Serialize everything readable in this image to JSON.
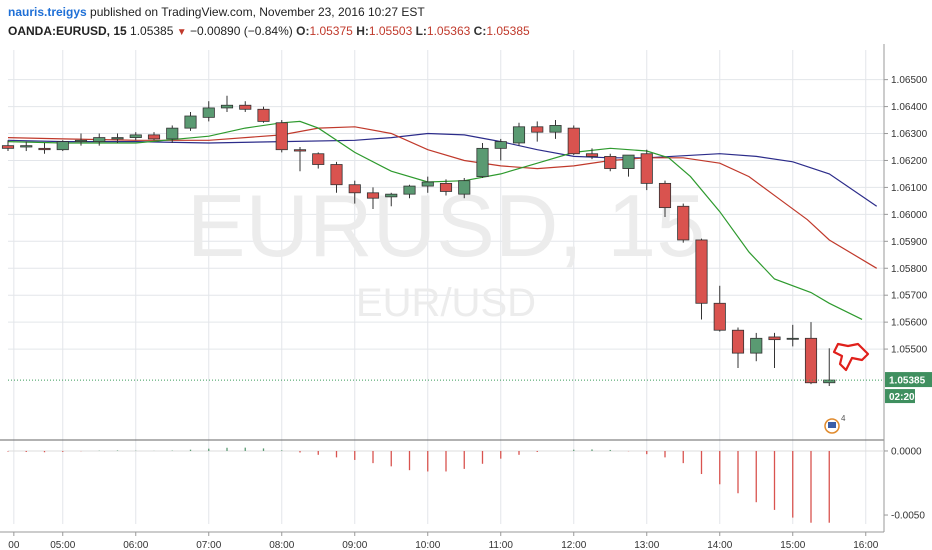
{
  "header": {
    "author": "nauris.treigys",
    "published": "published on TradingView.com, November 23, 2016 10:27 EST",
    "symbol": "OANDA:EURUSD, 15",
    "last": "1.05385",
    "change": "−0.00890 (−0.84%)",
    "o_label": "O:",
    "o": "1.05375",
    "h_label": "H:",
    "h": "1.05503",
    "l_label": "L:",
    "l": "1.05363",
    "c_label": "C:",
    "c": "1.05385"
  },
  "watermark": {
    "line1": "EURUSD, 15",
    "line2": "EUR/USD"
  },
  "price_badge": "1.05385",
  "countdown_badge": "02:20",
  "event_badge": "4",
  "colors": {
    "up": "#5a9a72",
    "down": "#d9534f",
    "ma_fast": "#2e9a2e",
    "ma_mid": "#c0392b",
    "ma_slow": "#2c2c8a",
    "grid": "#e3e6ea",
    "axis_text": "#333333",
    "hand_icon": "#e0201b"
  },
  "chart_data": {
    "type": "candlestick",
    "x_tick_labels": [
      "00",
      "05:00",
      "06:00",
      "07:00",
      "08:00",
      "09:00",
      "10:00",
      "11:00",
      "12:00",
      "13:00",
      "14:00",
      "15:00",
      "16:00"
    ],
    "x_tick_hours": [
      4.33,
      5,
      6,
      7,
      8,
      9,
      10,
      11,
      12,
      13,
      14,
      15,
      16
    ],
    "x_range_hours": [
      4.25,
      16.25
    ],
    "y_tick_labels": [
      "1.06500",
      "1.06400",
      "1.06300",
      "1.06200",
      "1.06100",
      "1.06000",
      "1.05900",
      "1.05800",
      "1.05700",
      "1.05600",
      "1.05500"
    ],
    "y_range": [
      1.0517,
      1.0661
    ],
    "osc_tick_labels": [
      "0.0000",
      "-0.0050"
    ],
    "osc_range": [
      -0.0057,
      0.0007
    ],
    "candles_time_start": 4.25,
    "candles_time_step": 0.25,
    "candles": [
      {
        "o": 1.06255,
        "h": 1.06275,
        "l": 1.06235,
        "c": 1.06245
      },
      {
        "o": 1.0625,
        "h": 1.0627,
        "l": 1.06235,
        "c": 1.06255
      },
      {
        "o": 1.06245,
        "h": 1.06265,
        "l": 1.06225,
        "c": 1.0624
      },
      {
        "o": 1.0624,
        "h": 1.06275,
        "l": 1.06235,
        "c": 1.0627
      },
      {
        "o": 1.0627,
        "h": 1.063,
        "l": 1.06255,
        "c": 1.06275
      },
      {
        "o": 1.0627,
        "h": 1.063,
        "l": 1.06255,
        "c": 1.06285
      },
      {
        "o": 1.0628,
        "h": 1.063,
        "l": 1.06265,
        "c": 1.06285
      },
      {
        "o": 1.06285,
        "h": 1.06305,
        "l": 1.06275,
        "c": 1.06295
      },
      {
        "o": 1.06295,
        "h": 1.06305,
        "l": 1.06275,
        "c": 1.0628
      },
      {
        "o": 1.0628,
        "h": 1.0633,
        "l": 1.06265,
        "c": 1.0632
      },
      {
        "o": 1.0632,
        "h": 1.0638,
        "l": 1.0631,
        "c": 1.06365
      },
      {
        "o": 1.0636,
        "h": 1.0642,
        "l": 1.06345,
        "c": 1.06395
      },
      {
        "o": 1.06395,
        "h": 1.0644,
        "l": 1.0638,
        "c": 1.06405
      },
      {
        "o": 1.06405,
        "h": 1.0642,
        "l": 1.0638,
        "c": 1.0639
      },
      {
        "o": 1.0639,
        "h": 1.064,
        "l": 1.0634,
        "c": 1.06345
      },
      {
        "o": 1.0634,
        "h": 1.0635,
        "l": 1.0623,
        "c": 1.0624
      },
      {
        "o": 1.0624,
        "h": 1.0625,
        "l": 1.0616,
        "c": 1.06235
      },
      {
        "o": 1.06225,
        "h": 1.0623,
        "l": 1.0617,
        "c": 1.06185
      },
      {
        "o": 1.06185,
        "h": 1.06195,
        "l": 1.0608,
        "c": 1.0611
      },
      {
        "o": 1.0611,
        "h": 1.06125,
        "l": 1.0604,
        "c": 1.0608
      },
      {
        "o": 1.0608,
        "h": 1.061,
        "l": 1.0602,
        "c": 1.0606
      },
      {
        "o": 1.06065,
        "h": 1.0608,
        "l": 1.0603,
        "c": 1.06075
      },
      {
        "o": 1.06075,
        "h": 1.0611,
        "l": 1.0606,
        "c": 1.06105
      },
      {
        "o": 1.06105,
        "h": 1.0614,
        "l": 1.0608,
        "c": 1.0612
      },
      {
        "o": 1.06115,
        "h": 1.0613,
        "l": 1.0607,
        "c": 1.06085
      },
      {
        "o": 1.06075,
        "h": 1.06135,
        "l": 1.0606,
        "c": 1.06125
      },
      {
        "o": 1.0614,
        "h": 1.06265,
        "l": 1.06135,
        "c": 1.06245
      },
      {
        "o": 1.06245,
        "h": 1.0628,
        "l": 1.062,
        "c": 1.0627
      },
      {
        "o": 1.06265,
        "h": 1.0634,
        "l": 1.06255,
        "c": 1.06325
      },
      {
        "o": 1.06325,
        "h": 1.06345,
        "l": 1.0627,
        "c": 1.06305
      },
      {
        "o": 1.06305,
        "h": 1.0635,
        "l": 1.0628,
        "c": 1.0633
      },
      {
        "o": 1.0632,
        "h": 1.0633,
        "l": 1.0622,
        "c": 1.06225
      },
      {
        "o": 1.06225,
        "h": 1.06245,
        "l": 1.06205,
        "c": 1.06215
      },
      {
        "o": 1.06215,
        "h": 1.06225,
        "l": 1.0616,
        "c": 1.0617
      },
      {
        "o": 1.0617,
        "h": 1.0622,
        "l": 1.0614,
        "c": 1.0622
      },
      {
        "o": 1.06225,
        "h": 1.0624,
        "l": 1.0609,
        "c": 1.06115
      },
      {
        "o": 1.06115,
        "h": 1.06125,
        "l": 1.0599,
        "c": 1.06025
      },
      {
        "o": 1.0603,
        "h": 1.0604,
        "l": 1.05895,
        "c": 1.05905
      },
      {
        "o": 1.05905,
        "h": 1.0591,
        "l": 1.0561,
        "c": 1.0567
      },
      {
        "o": 1.0567,
        "h": 1.05735,
        "l": 1.05565,
        "c": 1.0557
      },
      {
        "o": 1.0557,
        "h": 1.0558,
        "l": 1.0543,
        "c": 1.05485
      },
      {
        "o": 1.05485,
        "h": 1.0556,
        "l": 1.05455,
        "c": 1.0554
      },
      {
        "o": 1.05545,
        "h": 1.0556,
        "l": 1.0543,
        "c": 1.05535
      },
      {
        "o": 1.0554,
        "h": 1.0559,
        "l": 1.0551,
        "c": 1.0554
      },
      {
        "o": 1.0554,
        "h": 1.056,
        "l": 1.0537,
        "c": 1.05375
      },
      {
        "o": 1.05375,
        "h": 1.05503,
        "l": 1.05363,
        "c": 1.05385
      }
    ],
    "ma_fast": [
      [
        4.25,
        1.0627
      ],
      [
        5,
        1.06265
      ],
      [
        6,
        1.06265
      ],
      [
        7,
        1.0629
      ],
      [
        7.5,
        1.0632
      ],
      [
        8,
        1.0634
      ],
      [
        8.25,
        1.06345
      ],
      [
        8.5,
        1.0632
      ],
      [
        9,
        1.0623
      ],
      [
        9.5,
        1.0616
      ],
      [
        10,
        1.0612
      ],
      [
        10.5,
        1.06125
      ],
      [
        11,
        1.0615
      ],
      [
        11.5,
        1.0619
      ],
      [
        12,
        1.0623
      ],
      [
        12.5,
        1.06245
      ],
      [
        13,
        1.06235
      ],
      [
        13.3,
        1.0621
      ],
      [
        13.6,
        1.0614
      ],
      [
        14,
        1.0601
      ],
      [
        14.4,
        1.0586
      ],
      [
        14.75,
        1.0576
      ],
      [
        15.25,
        1.0571
      ],
      [
        15.5,
        1.0567
      ],
      [
        15.95,
        1.0561
      ]
    ],
    "ma_mid": [
      [
        4.25,
        1.06285
      ],
      [
        5,
        1.0628
      ],
      [
        6,
        1.06275
      ],
      [
        7,
        1.06275
      ],
      [
        8,
        1.06295
      ],
      [
        8.5,
        1.0632
      ],
      [
        9,
        1.06325
      ],
      [
        9.5,
        1.063
      ],
      [
        10,
        1.0624
      ],
      [
        10.5,
        1.062
      ],
      [
        11,
        1.0618
      ],
      [
        11.5,
        1.0617
      ],
      [
        12,
        1.0618
      ],
      [
        12.5,
        1.062
      ],
      [
        13,
        1.0621
      ],
      [
        13.5,
        1.0621
      ],
      [
        14,
        1.0619
      ],
      [
        14.4,
        1.0614
      ],
      [
        14.8,
        1.0606
      ],
      [
        15.2,
        1.0598
      ],
      [
        15.5,
        1.05905
      ],
      [
        16.15,
        1.058
      ]
    ],
    "ma_slow": [
      [
        4.25,
        1.06275
      ],
      [
        5,
        1.0627
      ],
      [
        6,
        1.0627
      ],
      [
        7,
        1.06265
      ],
      [
        8,
        1.0627
      ],
      [
        9,
        1.06275
      ],
      [
        9.5,
        1.06285
      ],
      [
        10,
        1.063
      ],
      [
        10.5,
        1.06295
      ],
      [
        11,
        1.0627
      ],
      [
        11.5,
        1.0624
      ],
      [
        12,
        1.06215
      ],
      [
        12.5,
        1.0621
      ],
      [
        13,
        1.0621
      ],
      [
        14,
        1.06225
      ],
      [
        14.5,
        1.06215
      ],
      [
        15,
        1.06195
      ],
      [
        15.5,
        1.0615
      ],
      [
        16.15,
        1.0603
      ]
    ],
    "oscillator_step": 0.25,
    "oscillator": [
      -5e-05,
      -8e-05,
      -0.0001,
      -7e-05,
      -2e-05,
      2e-05,
      4e-05,
      2e-05,
      1e-05,
      3e-05,
      0.0001,
      0.00018,
      0.00025,
      0.00026,
      0.0002,
      5e-05,
      -0.00012,
      -0.0003,
      -0.0005,
      -0.0007,
      -0.00095,
      -0.0012,
      -0.0015,
      -0.0016,
      -0.0016,
      -0.0014,
      -0.001,
      -0.0006,
      -0.0003,
      -8e-05,
      0.0,
      0.0001,
      0.00012,
      8e-05,
      -2e-05,
      -0.00025,
      -0.0005,
      -0.00095,
      -0.0018,
      -0.0026,
      -0.0033,
      -0.004,
      -0.0046,
      -0.0052,
      -0.0056,
      -0.0056
    ]
  }
}
